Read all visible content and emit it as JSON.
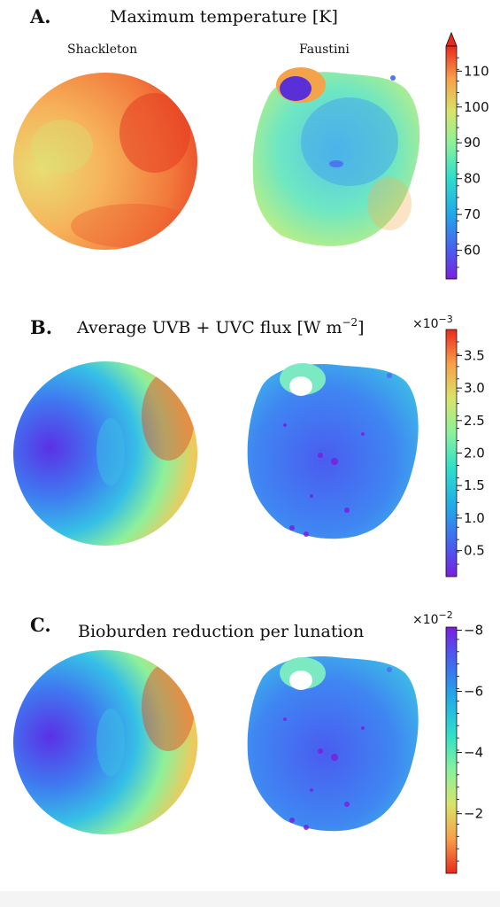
{
  "figure": {
    "crater_labels": [
      "Shackleton",
      "Faustini"
    ]
  },
  "chart_data": [
    {
      "type": "heatmap",
      "panel_letter": "A.",
      "title": "Maximum temperature [K]",
      "colorbar": {
        "range": [
          52,
          117
        ],
        "ticks": [
          60,
          70,
          80,
          90,
          100,
          110
        ],
        "tick_labels": [
          "60",
          "70",
          "80",
          "90",
          "100",
          "110"
        ],
        "multiplier": "",
        "colormap": "rainbow",
        "reversed": false,
        "extend_max_arrow": true
      },
      "maps": [
        {
          "name": "Shackleton",
          "min": 88,
          "typical": 103,
          "max": 113
        },
        {
          "name": "Faustini",
          "min": 55,
          "typical": 77,
          "max": 103
        }
      ]
    },
    {
      "type": "heatmap",
      "panel_letter": "B.",
      "title_main": "Average UVB + UVC flux [W m",
      "title_sup": "−2",
      "title_end": "]",
      "colorbar": {
        "range": [
          0.0001,
          0.0039
        ],
        "ticks": [
          0.0005,
          0.001,
          0.0015,
          0.002,
          0.0025,
          0.003,
          0.0035
        ],
        "tick_labels": [
          "0.5",
          "1.0",
          "1.5",
          "2.0",
          "2.5",
          "3.0",
          "3.5"
        ],
        "multiplier": "×10",
        "multiplier_exp": "−3",
        "colormap": "rainbow",
        "reversed": false
      },
      "maps": [
        {
          "name": "Shackleton",
          "min": 0.0002,
          "max": 0.0039
        },
        {
          "name": "Faustini",
          "min": 0.0001,
          "max": 0.0025
        }
      ]
    },
    {
      "type": "heatmap",
      "panel_letter": "C.",
      "title": "Bioburden reduction per lunation",
      "colorbar": {
        "range": [
          -0.081,
          -0.0005
        ],
        "ticks": [
          -0.02,
          -0.04,
          -0.06,
          -0.08
        ],
        "tick_labels": [
          "−2",
          "−4",
          "−6",
          "−8"
        ],
        "multiplier": "×10",
        "multiplier_exp": "−2",
        "colormap": "rainbow",
        "reversed": true
      },
      "maps": [
        {
          "name": "Shackleton",
          "min": -0.08,
          "max": -0.005
        },
        {
          "name": "Faustini",
          "min": -0.05,
          "max": -0.002
        }
      ]
    }
  ]
}
